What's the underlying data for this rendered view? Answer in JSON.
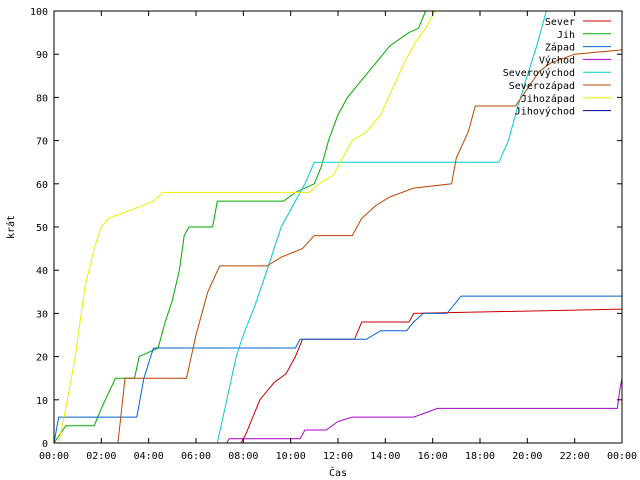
{
  "chart_data": {
    "type": "line",
    "xlabel": "Čas",
    "ylabel": "krát",
    "xlim": [
      0,
      24
    ],
    "ylim": [
      0,
      100
    ],
    "x_ticks": [
      {
        "v": 0,
        "label": "00:00"
      },
      {
        "v": 2,
        "label": "02:00"
      },
      {
        "v": 4,
        "label": "04:00"
      },
      {
        "v": 6,
        "label": "06:00"
      },
      {
        "v": 8,
        "label": "08:00"
      },
      {
        "v": 10,
        "label": "10:00"
      },
      {
        "v": 12,
        "label": "12:00"
      },
      {
        "v": 14,
        "label": "14:00"
      },
      {
        "v": 16,
        "label": "16:00"
      },
      {
        "v": 18,
        "label": "18:00"
      },
      {
        "v": 20,
        "label": "20:00"
      },
      {
        "v": 22,
        "label": "22:00"
      },
      {
        "v": 24,
        "label": "00:00"
      }
    ],
    "y_ticks": [
      {
        "v": 0,
        "label": "0"
      },
      {
        "v": 10,
        "label": "10"
      },
      {
        "v": 20,
        "label": "20"
      },
      {
        "v": 30,
        "label": "30"
      },
      {
        "v": 40,
        "label": "40"
      },
      {
        "v": 50,
        "label": "50"
      },
      {
        "v": 60,
        "label": "60"
      },
      {
        "v": 70,
        "label": "70"
      },
      {
        "v": 80,
        "label": "80"
      },
      {
        "v": 90,
        "label": "90"
      },
      {
        "v": 100,
        "label": "100"
      }
    ],
    "grid": false,
    "legend_position": "top-right",
    "series": [
      {
        "name": "Sever",
        "color": "#cc0000",
        "points": [
          [
            7.1,
            0
          ],
          [
            7.9,
            0
          ],
          [
            8.1,
            2
          ],
          [
            8.4,
            6
          ],
          [
            8.7,
            10
          ],
          [
            9.0,
            12
          ],
          [
            9.3,
            14
          ],
          [
            9.8,
            16
          ],
          [
            10.2,
            20
          ],
          [
            10.5,
            24
          ],
          [
            12.7,
            24
          ],
          [
            13.0,
            28
          ],
          [
            15.0,
            28
          ],
          [
            15.2,
            30
          ],
          [
            24.0,
            31
          ]
        ]
      },
      {
        "name": "Jih",
        "color": "#00aa00",
        "points": [
          [
            0,
            0
          ],
          [
            0.5,
            4
          ],
          [
            1.7,
            4
          ],
          [
            2.0,
            8
          ],
          [
            2.6,
            15
          ],
          [
            3.4,
            15
          ],
          [
            3.6,
            20
          ],
          [
            4.4,
            22
          ],
          [
            4.7,
            28
          ],
          [
            5.0,
            33
          ],
          [
            5.3,
            40
          ],
          [
            5.5,
            48
          ],
          [
            5.7,
            50
          ],
          [
            6.7,
            50
          ],
          [
            6.9,
            56
          ],
          [
            9.7,
            56
          ],
          [
            10.2,
            58
          ],
          [
            11.0,
            60
          ],
          [
            11.3,
            64
          ],
          [
            11.6,
            70
          ],
          [
            12.0,
            76
          ],
          [
            12.4,
            80
          ],
          [
            13.0,
            84
          ],
          [
            13.6,
            88
          ],
          [
            14.2,
            92
          ],
          [
            15.0,
            95
          ],
          [
            15.4,
            96
          ],
          [
            15.7,
            100
          ]
        ]
      },
      {
        "name": "Západ",
        "color": "#0066cc",
        "points": [
          [
            0,
            0
          ],
          [
            0.2,
            6
          ],
          [
            3.5,
            6
          ],
          [
            3.8,
            15
          ],
          [
            4.2,
            22
          ],
          [
            10.2,
            22
          ],
          [
            10.4,
            24
          ],
          [
            13.2,
            24
          ],
          [
            13.8,
            26
          ],
          [
            14.9,
            26
          ],
          [
            15.2,
            28
          ],
          [
            15.6,
            30
          ],
          [
            16.6,
            30
          ],
          [
            17.2,
            34
          ],
          [
            24.0,
            34
          ]
        ]
      },
      {
        "name": "Východ",
        "color": "#aa00cc",
        "points": [
          [
            7.3,
            0
          ],
          [
            7.4,
            1
          ],
          [
            10.4,
            1
          ],
          [
            10.6,
            3
          ],
          [
            11.5,
            3
          ],
          [
            12.0,
            5
          ],
          [
            12.6,
            6
          ],
          [
            15.2,
            6
          ],
          [
            16.2,
            8
          ],
          [
            23.8,
            8
          ],
          [
            23.9,
            12
          ],
          [
            24.0,
            15
          ]
        ]
      },
      {
        "name": "Severovýchod",
        "color": "#00cccc",
        "points": [
          [
            6.9,
            0
          ],
          [
            7.3,
            10
          ],
          [
            7.7,
            20
          ],
          [
            8.0,
            25
          ],
          [
            8.5,
            32
          ],
          [
            9.0,
            40
          ],
          [
            9.6,
            50
          ],
          [
            10.2,
            56
          ],
          [
            10.6,
            60
          ],
          [
            11.0,
            65
          ],
          [
            18.8,
            65
          ],
          [
            19.2,
            70
          ],
          [
            19.6,
            78
          ],
          [
            20.0,
            85
          ],
          [
            20.4,
            92
          ],
          [
            20.8,
            100
          ]
        ]
      },
      {
        "name": "Severozápad",
        "color": "#bb4400",
        "points": [
          [
            2.7,
            0
          ],
          [
            2.8,
            5
          ],
          [
            3.0,
            15
          ],
          [
            5.6,
            15
          ],
          [
            6.0,
            25
          ],
          [
            6.5,
            35
          ],
          [
            7.0,
            41
          ],
          [
            9.0,
            41
          ],
          [
            9.6,
            43
          ],
          [
            10.5,
            45
          ],
          [
            11.0,
            48
          ],
          [
            12.6,
            48
          ],
          [
            13.0,
            52
          ],
          [
            13.6,
            55
          ],
          [
            14.2,
            57
          ],
          [
            15.2,
            59
          ],
          [
            16.8,
            60
          ],
          [
            17.0,
            66
          ],
          [
            17.5,
            72
          ],
          [
            17.8,
            78
          ],
          [
            19.5,
            78
          ],
          [
            20.0,
            82
          ],
          [
            20.5,
            86
          ],
          [
            21.0,
            88
          ],
          [
            22.0,
            90
          ],
          [
            24.0,
            91
          ]
        ]
      },
      {
        "name": "Jihozápad",
        "color": "#eeee00",
        "points": [
          [
            0.2,
            0
          ],
          [
            0.5,
            8
          ],
          [
            0.9,
            20
          ],
          [
            1.3,
            36
          ],
          [
            1.7,
            45
          ],
          [
            2.0,
            50
          ],
          [
            2.3,
            52
          ],
          [
            3.3,
            54
          ],
          [
            4.2,
            56
          ],
          [
            4.6,
            58
          ],
          [
            10.8,
            58
          ],
          [
            11.2,
            60
          ],
          [
            11.8,
            62
          ],
          [
            12.2,
            66
          ],
          [
            12.6,
            70
          ],
          [
            13.2,
            72
          ],
          [
            13.8,
            76
          ],
          [
            14.3,
            82
          ],
          [
            14.8,
            88
          ],
          [
            15.3,
            93
          ],
          [
            15.7,
            96
          ],
          [
            16.1,
            100
          ]
        ]
      },
      {
        "name": "Jihovýchod",
        "color": "#000099",
        "points": []
      }
    ]
  }
}
